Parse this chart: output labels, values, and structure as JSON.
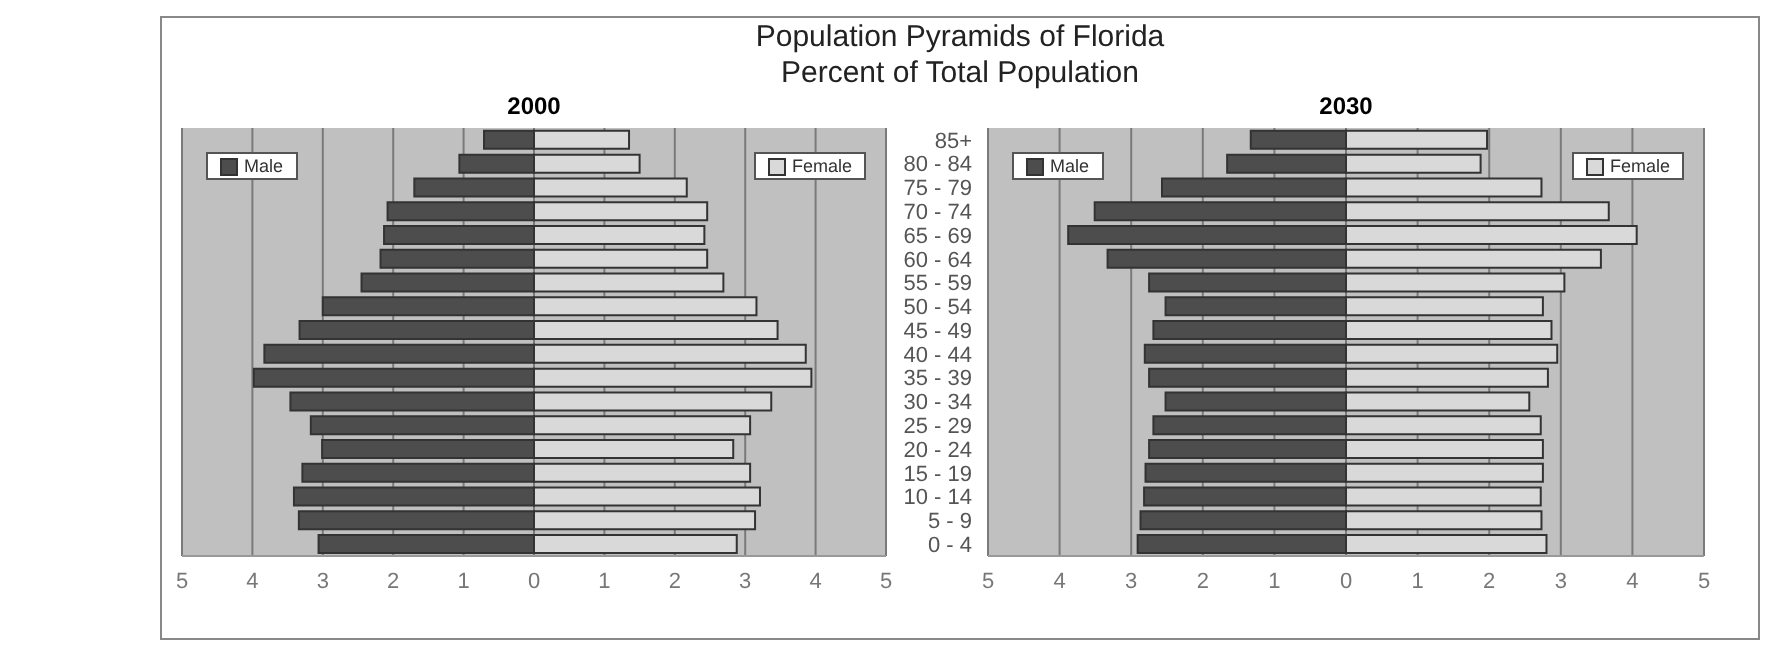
{
  "chart_data": [
    {
      "type": "bar",
      "title": "2000",
      "annotations": [
        "Population Pyramids of Florida",
        "Percent of Total Population"
      ],
      "orientation": "horizontal",
      "stacked": true,
      "grid": "x",
      "legend": "top",
      "tick_labels": "x",
      "categories": [
        null,
        null,
        null,
        null,
        null,
        null,
        null,
        null,
        null,
        null,
        null,
        null,
        null,
        null,
        null,
        null,
        null,
        null
      ],
      "xlim": [
        -5,
        5
      ],
      "xticks": [
        {
          "value": -5,
          "label": "5"
        },
        {
          "value": -4,
          "label": "4"
        },
        {
          "value": -3,
          "label": "3"
        },
        {
          "value": -2,
          "label": "2"
        },
        {
          "value": -1,
          "label": "1"
        },
        0,
        1,
        2,
        3,
        4,
        5
      ],
      "series": [
        {
          "name": "Male",
          "color": "#4d4d4d",
          "values": [
            -0.71,
            -1.06,
            -1.7,
            -2.08,
            -2.13,
            -2.18,
            -2.45,
            -3.0,
            -3.33,
            -3.83,
            -3.98,
            -3.46,
            -3.17,
            -3.01,
            -3.29,
            -3.41,
            -3.34,
            -3.06
          ]
        },
        {
          "name": "Female",
          "color": "#d9d9d9",
          "values": [
            1.35,
            1.5,
            2.17,
            2.46,
            2.42,
            2.46,
            2.69,
            3.16,
            3.46,
            3.86,
            3.94,
            3.37,
            3.07,
            2.83,
            3.07,
            3.21,
            3.14,
            2.88
          ]
        }
      ]
    },
    {
      "type": "bar",
      "title": "2030",
      "orientation": "horizontal",
      "stacked": true,
      "grid": "x",
      "legend": "top",
      "categories": [
        "85+",
        "80 - 84",
        "75 - 79",
        "70 - 74",
        "65 - 69",
        "60 - 64",
        "55 - 59",
        "50 - 54",
        "45 - 49",
        "40 - 44",
        "35 - 39",
        "30 - 34",
        "25 - 29",
        "20 - 24",
        "15 - 19",
        "10 - 14",
        "5 - 9",
        "0 - 4"
      ],
      "xlim": [
        -5,
        5
      ],
      "xticks": [
        {
          "value": -5,
          "label": "5"
        },
        {
          "value": -4,
          "label": "4"
        },
        {
          "value": -3,
          "label": "3"
        },
        {
          "value": -2,
          "label": "2"
        },
        {
          "value": -1,
          "label": "1"
        },
        0,
        1,
        2,
        3,
        4,
        5
      ],
      "series": [
        {
          "name": "Male",
          "color": "#4d4d4d",
          "values": [
            -1.33,
            -1.66,
            -2.57,
            -3.51,
            -3.88,
            -3.33,
            -2.75,
            -2.52,
            -2.69,
            -2.81,
            -2.75,
            -2.52,
            -2.69,
            -2.75,
            -2.8,
            -2.82,
            -2.87,
            -2.91
          ]
        },
        {
          "name": "Female",
          "color": "#d9d9d9",
          "values": [
            1.97,
            1.88,
            2.73,
            3.67,
            4.06,
            3.56,
            3.05,
            2.75,
            2.87,
            2.95,
            2.82,
            2.56,
            2.72,
            2.75,
            2.75,
            2.72,
            2.73,
            2.8
          ]
        }
      ]
    }
  ]
}
